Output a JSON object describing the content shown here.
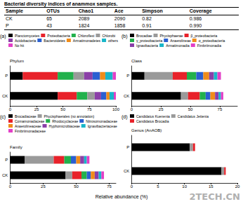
{
  "table": {
    "title": "Bacterial diversity indices of anammox samples.",
    "header": [
      "Sample",
      "OTUs",
      "Chao1",
      "Ace",
      "Simpson",
      "Coverage"
    ],
    "rows": [
      [
        "CK",
        "65",
        "2089",
        "2090",
        "0.82",
        "0.986"
      ],
      [
        "P",
        "43",
        "1824",
        "1858",
        "0.91",
        "0.990"
      ]
    ]
  },
  "axis_label": "Relative abundance (%)",
  "watermark": "2TECH.CN",
  "chart_data": [
    {
      "type": "bar",
      "label": "(a)",
      "title": "Phylum",
      "orientation": "horizontal",
      "stacked": true,
      "legend": "top",
      "grid": false,
      "categories": [
        "P",
        "CK"
      ],
      "xlim": [
        0,
        100
      ],
      "xticks": [
        0,
        25,
        50,
        75,
        100
      ],
      "series": [
        {
          "name": "Planctomycetes",
          "color": "#000000",
          "values": [
            12,
            45
          ]
        },
        {
          "name": "Proteobacteria",
          "color": "#e8222a",
          "values": [
            33,
            18
          ]
        },
        {
          "name": "Chloroflexi",
          "color": "#22b14c",
          "values": [
            15,
            10
          ]
        },
        {
          "name": "Chlorobi",
          "color": "#9a9a9a",
          "values": [
            10,
            7
          ]
        },
        {
          "name": "Acidobacteria",
          "color": "#8b3fa8",
          "values": [
            8,
            6
          ]
        },
        {
          "name": "Bacteroidetes",
          "color": "#2a5fd1",
          "values": [
            7,
            5
          ]
        },
        {
          "name": "Armatimonadetes",
          "color": "#f08c1a",
          "values": [
            5,
            3
          ]
        },
        {
          "name": "others",
          "color": "#19b6c9",
          "values": [
            7,
            4
          ]
        },
        {
          "name": "No hit",
          "color": "#e23fc7",
          "values": [
            3,
            2
          ]
        }
      ]
    },
    {
      "type": "bar",
      "label": "(b)",
      "title": "Class",
      "orientation": "horizontal",
      "stacked": true,
      "legend": "top",
      "grid": false,
      "categories": [
        "P",
        "CK"
      ],
      "xlim": [
        0,
        90
      ],
      "xticks": [
        0,
        25,
        50,
        75
      ],
      "series": [
        {
          "name": "Brocadiae",
          "color": "#000000",
          "values": [
            11,
            42
          ]
        },
        {
          "name": "Phycisphaerae",
          "color": "#9a9a9a",
          "values": [
            24,
            6
          ]
        },
        {
          "name": "β_proteobacteria",
          "color": "#e8222a",
          "values": [
            12,
            10
          ]
        },
        {
          "name": "γ_proteobacteria",
          "color": "#22b14c",
          "values": [
            8,
            5
          ]
        },
        {
          "name": "Anaerolineae",
          "color": "#2a5fd1",
          "values": [
            6,
            4
          ]
        },
        {
          "name": "α_proteobacteria",
          "color": "#f08c1a",
          "values": [
            5,
            4
          ]
        },
        {
          "name": "Ignavibacteria",
          "color": "#8b3fa8",
          "values": [
            4,
            3
          ]
        },
        {
          "name": "Armatimonadia",
          "color": "#19b6c9",
          "values": [
            3,
            2
          ]
        },
        {
          "name": "Fimbriimonadia",
          "color": "#e23fc7",
          "values": [
            3,
            2
          ]
        }
      ]
    },
    {
      "type": "bar",
      "label": "(c)",
      "title": "Family",
      "orientation": "horizontal",
      "stacked": true,
      "legend": "top",
      "grid": false,
      "categories": [
        "P",
        "CK"
      ],
      "xlim": [
        0,
        80
      ],
      "xticks": [
        0,
        25,
        50,
        75
      ],
      "series": [
        {
          "name": "Brocadiaceae",
          "color": "#000000",
          "values": [
            11,
            42
          ]
        },
        {
          "name": "Phycisphaerales (no annotation)",
          "color": "#9a9a9a",
          "values": [
            22,
            5
          ]
        },
        {
          "name": "Comamonadaceae",
          "color": "#e8222a",
          "values": [
            8,
            7
          ]
        },
        {
          "name": "Rhodocyclaceae",
          "color": "#22b14c",
          "values": [
            5,
            4
          ]
        },
        {
          "name": "Nitrosomonadaceae",
          "color": "#2a5fd1",
          "values": [
            4,
            3
          ]
        },
        {
          "name": "Anaerolineaceae",
          "color": "#f08c1a",
          "values": [
            3,
            3
          ]
        },
        {
          "name": "Hyphomicrobiaceae",
          "color": "#8b3fa8",
          "values": [
            3,
            3
          ]
        },
        {
          "name": "Ignavibacteriaceae",
          "color": "#19b6c9",
          "values": [
            2,
            2
          ]
        },
        {
          "name": "Fimbriimonadaceae",
          "color": "#e23fc7",
          "values": [
            2,
            2
          ]
        }
      ]
    },
    {
      "type": "bar",
      "label": "(d)",
      "title": "Genus (AnAOB)",
      "orientation": "horizontal",
      "stacked": true,
      "legend": "top",
      "grid": false,
      "categories": [
        "P",
        "CK"
      ],
      "xlim": [
        0,
        20
      ],
      "xticks": [
        0,
        5,
        10,
        15,
        20
      ],
      "series": [
        {
          "name": "Candidatus Kuenenia",
          "color": "#000000",
          "values": [
            11,
            17
          ]
        },
        {
          "name": "Candidatus Jettenia",
          "color": "#9a9a9a",
          "values": [
            0.6,
            0.5
          ]
        },
        {
          "name": "Candidatus Brocadia",
          "color": "#e8222a",
          "values": [
            0.4,
            0.3
          ]
        }
      ]
    }
  ]
}
